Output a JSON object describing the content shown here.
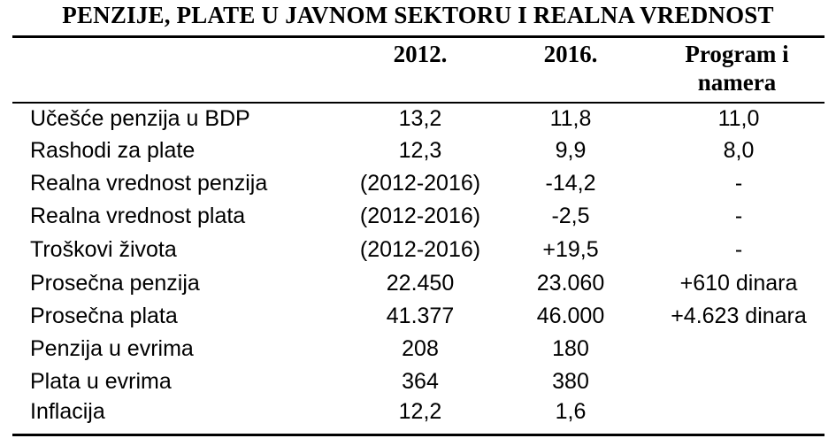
{
  "title": "PENZIJE, PLATE U JAVNOM SEKTORU I REALNA VREDNOST",
  "headers": [
    "2012.",
    "2016.",
    "Program i namera"
  ],
  "rows": [
    {
      "label": "Učešće penzija u BDP",
      "c2012": "13,2",
      "c2016": "11,8",
      "program": "11,0"
    },
    {
      "label": "Rashodi za plate",
      "c2012": "12,3",
      "c2016": "9,9",
      "program": "8,0"
    },
    {
      "label": "Realna vrednost penzija",
      "c2012": "(2012-2016)",
      "c2016": "-14,2",
      "program": "-"
    },
    {
      "label": "Realna vrednost plata",
      "c2012": "(2012-2016)",
      "c2016": "-2,5",
      "program": "-"
    },
    {
      "label": "Troškovi života",
      "c2012": "(2012-2016)",
      "c2016": "+19,5",
      "program": "-"
    },
    {
      "label": "Prosečna penzija",
      "c2012": "22.450",
      "c2016": "23.060",
      "program": "+610 dinara"
    },
    {
      "label": "Prosečna plata",
      "c2012": "41.377",
      "c2016": "46.000",
      "program": "+4.623 dinara"
    },
    {
      "label": "Penzija u evrima",
      "c2012": "208",
      "c2016": "180",
      "program": ""
    },
    {
      "label": "Plata u evrima",
      "c2012": "364",
      "c2016": "380",
      "program": ""
    },
    {
      "label": "Inflacija",
      "c2012": "12,2",
      "c2016": "1,6",
      "program": ""
    }
  ]
}
